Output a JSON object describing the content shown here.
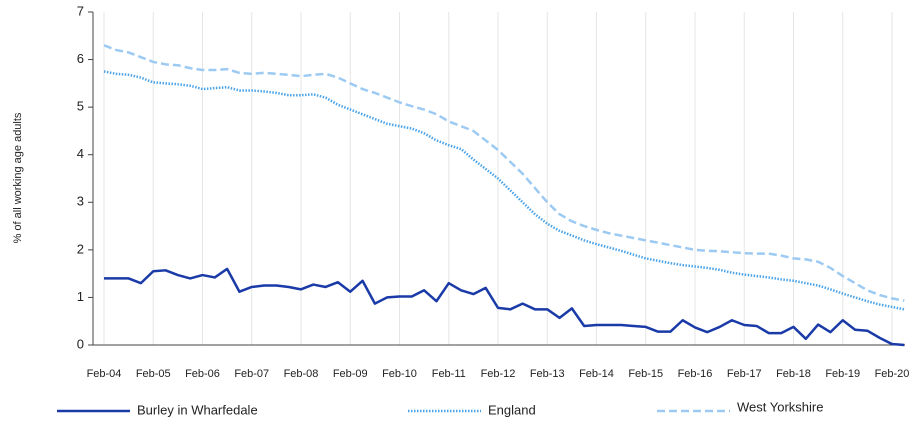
{
  "chart_data": {
    "type": "line",
    "y_label": "% of all working age adults",
    "categories": [
      "Feb-04",
      null,
      null,
      null,
      "Feb-05",
      null,
      null,
      null,
      "Feb-06",
      null,
      null,
      null,
      "Feb-07",
      null,
      null,
      null,
      "Feb-08",
      null,
      null,
      null,
      "Feb-09",
      null,
      null,
      null,
      "Feb-10",
      null,
      null,
      null,
      "Feb-11",
      null,
      null,
      null,
      "Feb-12",
      null,
      null,
      null,
      "Feb-13",
      null,
      null,
      null,
      "Feb-14",
      null,
      null,
      null,
      "Feb-15",
      null,
      null,
      null,
      "Feb-16",
      null,
      null,
      null,
      "Feb-17",
      null,
      null,
      null,
      "Feb-18",
      null,
      null,
      null,
      "Feb-19",
      null,
      null,
      null,
      "Feb-20",
      null
    ],
    "series": [
      {
        "name": "Burley in Wharfedale",
        "color": "#1a3aa8",
        "style": "solid",
        "values": [
          1.4,
          1.4,
          1.4,
          1.3,
          1.55,
          1.57,
          1.47,
          1.4,
          1.47,
          1.42,
          1.6,
          1.12,
          1.22,
          1.25,
          1.25,
          1.22,
          1.17,
          1.27,
          1.22,
          1.32,
          1.12,
          1.35,
          0.87,
          1.0,
          1.02,
          1.02,
          1.15,
          0.92,
          1.3,
          1.15,
          1.07,
          1.2,
          0.78,
          0.75,
          0.87,
          0.75,
          0.75,
          0.57,
          0.77,
          0.4,
          0.42,
          0.42,
          0.42,
          0.4,
          0.38,
          0.28,
          0.28,
          0.52,
          0.37,
          0.27,
          0.38,
          0.52,
          0.42,
          0.4,
          0.25,
          0.25,
          0.38,
          0.13,
          0.43,
          0.27,
          0.52,
          0.32,
          0.3,
          0.15,
          0.02,
          0.0
        ]
      },
      {
        "name": "England",
        "color": "#4aa3e8",
        "style": "dotted",
        "values": [
          5.75,
          5.7,
          5.68,
          5.62,
          5.52,
          5.5,
          5.48,
          5.45,
          5.38,
          5.4,
          5.42,
          5.35,
          5.35,
          5.33,
          5.3,
          5.25,
          5.25,
          5.27,
          5.2,
          5.05,
          4.95,
          4.85,
          4.75,
          4.65,
          4.6,
          4.55,
          4.45,
          4.3,
          4.2,
          4.12,
          3.9,
          3.7,
          3.5,
          3.25,
          3.0,
          2.75,
          2.55,
          2.4,
          2.3,
          2.2,
          2.12,
          2.05,
          1.98,
          1.9,
          1.82,
          1.77,
          1.72,
          1.68,
          1.65,
          1.62,
          1.58,
          1.52,
          1.48,
          1.45,
          1.42,
          1.38,
          1.35,
          1.3,
          1.25,
          1.17,
          1.08,
          1.0,
          0.92,
          0.85,
          0.8,
          0.75
        ]
      },
      {
        "name": "West Yorkshire",
        "color": "#9ccaf2",
        "style": "dashed",
        "values": [
          6.3,
          6.2,
          6.15,
          6.05,
          5.95,
          5.9,
          5.88,
          5.82,
          5.78,
          5.78,
          5.8,
          5.72,
          5.7,
          5.72,
          5.7,
          5.68,
          5.65,
          5.68,
          5.7,
          5.62,
          5.5,
          5.38,
          5.3,
          5.2,
          5.1,
          5.02,
          4.95,
          4.85,
          4.7,
          4.6,
          4.5,
          4.3,
          4.1,
          3.85,
          3.6,
          3.3,
          3.0,
          2.75,
          2.6,
          2.5,
          2.42,
          2.35,
          2.3,
          2.25,
          2.2,
          2.15,
          2.1,
          2.05,
          2.0,
          1.98,
          1.97,
          1.95,
          1.93,
          1.92,
          1.92,
          1.88,
          1.82,
          1.8,
          1.75,
          1.62,
          1.45,
          1.3,
          1.15,
          1.05,
          0.98,
          0.93
        ]
      }
    ],
    "ylim": [
      0,
      7
    ],
    "yticks": [
      0,
      1,
      2,
      3,
      4,
      5,
      6,
      7
    ],
    "grid": "x",
    "legend": "bottom"
  }
}
